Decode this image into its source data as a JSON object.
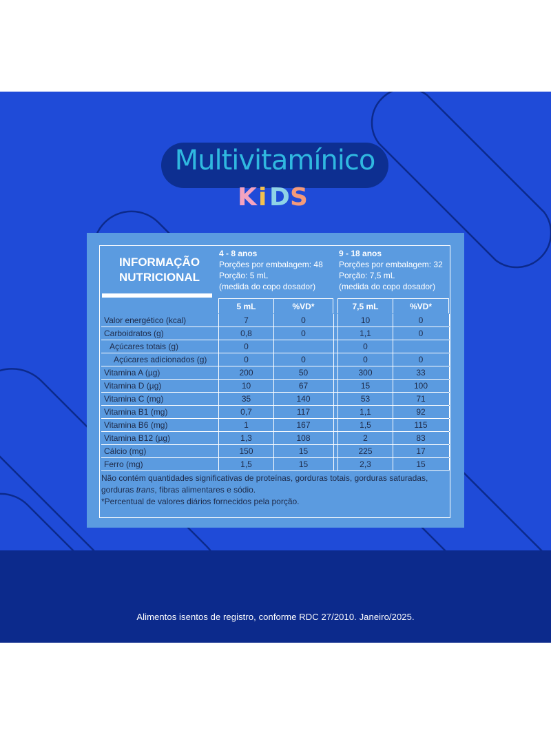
{
  "brand": {
    "title": "Multivitamínico",
    "kids": [
      "K",
      "i",
      "D",
      "S"
    ],
    "kids_colors": [
      "#f4a3c0",
      "#f2c14e",
      "#8fd3e6",
      "#f39a7a"
    ],
    "title_color": "#30b8e0"
  },
  "table": {
    "title_line1": "INFORMAÇÃO",
    "title_line2": "NUTRICIONAL",
    "group1": {
      "age": "4 - 8 anos",
      "servings": "Porções por embalagem: 48",
      "portion": "Porção: 5 mL",
      "measure": "(medida do copo dosador)",
      "col_amount": "5 mL",
      "col_vd": "%VD*"
    },
    "group2": {
      "age": "9 - 18 anos",
      "servings": "Porções por embalagem: 32",
      "portion": "Porção: 7,5 mL",
      "measure": "(medida do copo dosador)",
      "col_amount": "7,5 mL",
      "col_vd": "%VD*"
    },
    "rows": [
      {
        "label": "Valor energético (kcal)",
        "a1": "7",
        "v1": "0",
        "a2": "10",
        "v2": "0",
        "indent": 0
      },
      {
        "label": "Carboidratos (g)",
        "a1": "0,8",
        "v1": "0",
        "a2": "1,1",
        "v2": "0",
        "indent": 0
      },
      {
        "label": "Açúcares totais (g)",
        "a1": "0",
        "v1": "",
        "a2": "0",
        "v2": "",
        "indent": 1
      },
      {
        "label": "Açúcares adicionados (g)",
        "a1": "0",
        "v1": "0",
        "a2": "0",
        "v2": "0",
        "indent": 2
      },
      {
        "label": "Vitamina A (µg)",
        "a1": "200",
        "v1": "50",
        "a2": "300",
        "v2": "33",
        "indent": 0
      },
      {
        "label": "Vitamina D (µg)",
        "a1": "10",
        "v1": "67",
        "a2": "15",
        "v2": "100",
        "indent": 0
      },
      {
        "label": "Vitamina C (mg)",
        "a1": "35",
        "v1": "140",
        "a2": "53",
        "v2": "71",
        "indent": 0
      },
      {
        "label": "Vitamina B1 (mg)",
        "a1": "0,7",
        "v1": "117",
        "a2": "1,1",
        "v2": "92",
        "indent": 0
      },
      {
        "label": "Vitamina B6 (mg)",
        "a1": "1",
        "v1": "167",
        "a2": "1,5",
        "v2": "115",
        "indent": 0
      },
      {
        "label": "Vitamina B12 (µg)",
        "a1": "1,3",
        "v1": "108",
        "a2": "2",
        "v2": "83",
        "indent": 0
      },
      {
        "label": "Cálcio (mg)",
        "a1": "150",
        "v1": "15",
        "a2": "225",
        "v2": "17",
        "indent": 0
      },
      {
        "label": "Ferro (mg)",
        "a1": "1,5",
        "v1": "15",
        "a2": "2,3",
        "v2": "15",
        "indent": 0
      }
    ],
    "note1_a": "Não contém quantidades significativas de proteínas, gorduras totais, gorduras saturadas,",
    "note1_b": "gorduras ",
    "note1_c": "trans",
    "note1_d": ", fibras alimentares e sódio.",
    "note2": "*Percentual de valores diários fornecidos pela porção."
  },
  "footer": "Alimentos isentos de registro, conforme RDC 27/2010. Janeiro/2025.",
  "colors": {
    "background": "#1f4bd8",
    "footer_band": "#0c2a8c",
    "panel": "#5b9be0",
    "pill": "#0d2f91"
  }
}
